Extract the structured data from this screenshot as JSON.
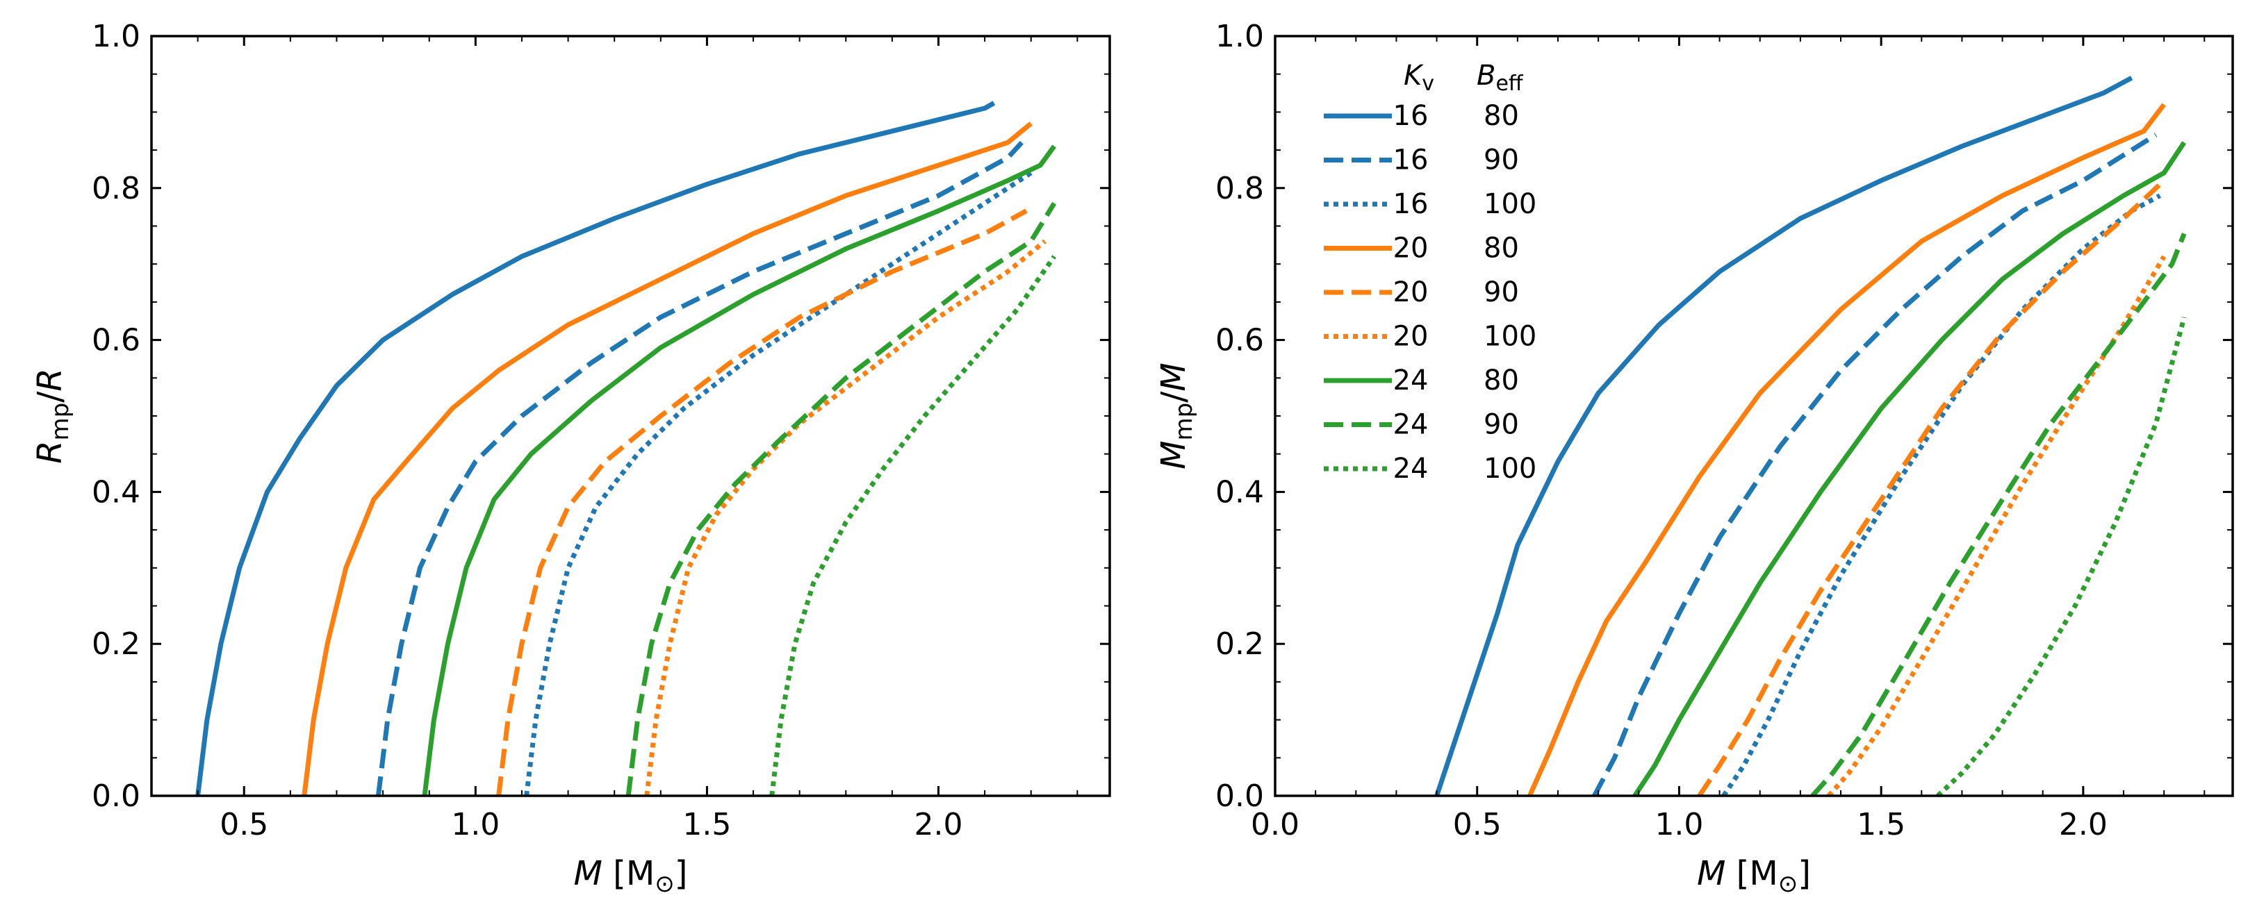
{
  "chart_data": [
    {
      "type": "line",
      "id": "left",
      "xlabel": {
        "main": "M",
        "unit": "[M",
        "unit_sub": "⊙",
        "unit_end": "]"
      },
      "ylabel": {
        "main": "R",
        "sub": "mp",
        "tail": "/R"
      },
      "xlim": [
        0.3,
        2.37
      ],
      "ylim": [
        0.0,
        1.0
      ],
      "xticks": [
        0.5,
        1.0,
        1.5,
        2.0
      ],
      "xtick_labels": [
        "0.5",
        "1.0",
        "1.5",
        "2.0"
      ],
      "yticks": [
        0.0,
        0.2,
        0.4,
        0.6,
        0.8,
        1.0
      ],
      "ytick_labels": [
        "0.0",
        "0.2",
        "0.4",
        "0.6",
        "0.8",
        "1.0"
      ],
      "series": [
        {
          "kv": "16",
          "beff": "80",
          "color": "#1f77b4",
          "dash": "solid",
          "points": [
            [
              0.4,
              0.0
            ],
            [
              0.42,
              0.1
            ],
            [
              0.45,
              0.2
            ],
            [
              0.49,
              0.3
            ],
            [
              0.55,
              0.4
            ],
            [
              0.62,
              0.47
            ],
            [
              0.7,
              0.54
            ],
            [
              0.8,
              0.6
            ],
            [
              0.95,
              0.66
            ],
            [
              1.1,
              0.71
            ],
            [
              1.3,
              0.76
            ],
            [
              1.5,
              0.805
            ],
            [
              1.7,
              0.845
            ],
            [
              1.9,
              0.875
            ],
            [
              2.1,
              0.905
            ],
            [
              2.12,
              0.912
            ]
          ]
        },
        {
          "kv": "16",
          "beff": "90",
          "color": "#1f77b4",
          "dash": "dashed",
          "points": [
            [
              0.79,
              0.0
            ],
            [
              0.81,
              0.1
            ],
            [
              0.84,
              0.2
            ],
            [
              0.88,
              0.3
            ],
            [
              0.94,
              0.38
            ],
            [
              1.0,
              0.44
            ],
            [
              1.1,
              0.5
            ],
            [
              1.25,
              0.57
            ],
            [
              1.4,
              0.63
            ],
            [
              1.6,
              0.69
            ],
            [
              1.8,
              0.74
            ],
            [
              2.0,
              0.79
            ],
            [
              2.15,
              0.84
            ],
            [
              2.18,
              0.86
            ]
          ]
        },
        {
          "kv": "16",
          "beff": "100",
          "color": "#1f77b4",
          "dash": "dotted",
          "points": [
            [
              1.11,
              0.0
            ],
            [
              1.13,
              0.1
            ],
            [
              1.16,
              0.2
            ],
            [
              1.2,
              0.3
            ],
            [
              1.26,
              0.38
            ],
            [
              1.35,
              0.45
            ],
            [
              1.45,
              0.51
            ],
            [
              1.6,
              0.58
            ],
            [
              1.8,
              0.66
            ],
            [
              2.0,
              0.74
            ],
            [
              2.15,
              0.8
            ],
            [
              2.2,
              0.82
            ]
          ]
        },
        {
          "kv": "20",
          "beff": "80",
          "color": "#ff7f0e",
          "dash": "solid",
          "points": [
            [
              0.63,
              0.0
            ],
            [
              0.65,
              0.1
            ],
            [
              0.68,
              0.2
            ],
            [
              0.72,
              0.3
            ],
            [
              0.78,
              0.39
            ],
            [
              0.85,
              0.44
            ],
            [
              0.95,
              0.51
            ],
            [
              1.05,
              0.56
            ],
            [
              1.2,
              0.62
            ],
            [
              1.4,
              0.68
            ],
            [
              1.6,
              0.74
            ],
            [
              1.8,
              0.79
            ],
            [
              2.0,
              0.83
            ],
            [
              2.15,
              0.86
            ],
            [
              2.2,
              0.885
            ]
          ]
        },
        {
          "kv": "20",
          "beff": "90",
          "color": "#ff7f0e",
          "dash": "dashed",
          "points": [
            [
              1.05,
              0.0
            ],
            [
              1.07,
              0.1
            ],
            [
              1.1,
              0.2
            ],
            [
              1.14,
              0.3
            ],
            [
              1.2,
              0.38
            ],
            [
              1.28,
              0.44
            ],
            [
              1.4,
              0.5
            ],
            [
              1.55,
              0.57
            ],
            [
              1.7,
              0.63
            ],
            [
              1.9,
              0.69
            ],
            [
              2.1,
              0.74
            ],
            [
              2.19,
              0.77
            ]
          ]
        },
        {
          "kv": "20",
          "beff": "100",
          "color": "#ff7f0e",
          "dash": "dotted",
          "points": [
            [
              1.37,
              0.0
            ],
            [
              1.39,
              0.1
            ],
            [
              1.42,
              0.2
            ],
            [
              1.46,
              0.3
            ],
            [
              1.52,
              0.37
            ],
            [
              1.6,
              0.43
            ],
            [
              1.7,
              0.49
            ],
            [
              1.85,
              0.56
            ],
            [
              2.0,
              0.63
            ],
            [
              2.15,
              0.69
            ],
            [
              2.23,
              0.73
            ]
          ]
        },
        {
          "kv": "24",
          "beff": "80",
          "color": "#2ca02c",
          "dash": "solid",
          "points": [
            [
              0.89,
              0.0
            ],
            [
              0.91,
              0.1
            ],
            [
              0.94,
              0.2
            ],
            [
              0.98,
              0.3
            ],
            [
              1.04,
              0.39
            ],
            [
              1.12,
              0.45
            ],
            [
              1.25,
              0.52
            ],
            [
              1.4,
              0.59
            ],
            [
              1.6,
              0.66
            ],
            [
              1.8,
              0.72
            ],
            [
              2.0,
              0.77
            ],
            [
              2.15,
              0.81
            ],
            [
              2.22,
              0.83
            ],
            [
              2.25,
              0.855
            ]
          ]
        },
        {
          "kv": "24",
          "beff": "90",
          "color": "#2ca02c",
          "dash": "dashed",
          "points": [
            [
              1.33,
              0.0
            ],
            [
              1.35,
              0.1
            ],
            [
              1.38,
              0.2
            ],
            [
              1.42,
              0.28
            ],
            [
              1.48,
              0.35
            ],
            [
              1.56,
              0.41
            ],
            [
              1.66,
              0.47
            ],
            [
              1.8,
              0.55
            ],
            [
              1.95,
              0.62
            ],
            [
              2.1,
              0.69
            ],
            [
              2.2,
              0.73
            ],
            [
              2.25,
              0.78
            ]
          ]
        },
        {
          "kv": "24",
          "beff": "100",
          "color": "#2ca02c",
          "dash": "dotted",
          "points": [
            [
              1.64,
              0.0
            ],
            [
              1.66,
              0.1
            ],
            [
              1.69,
              0.2
            ],
            [
              1.73,
              0.28
            ],
            [
              1.8,
              0.36
            ],
            [
              1.88,
              0.43
            ],
            [
              1.97,
              0.5
            ],
            [
              2.07,
              0.57
            ],
            [
              2.17,
              0.64
            ],
            [
              2.25,
              0.71
            ]
          ]
        }
      ]
    },
    {
      "type": "line",
      "id": "right",
      "xlabel": {
        "main": "M",
        "unit": "[M",
        "unit_sub": "⊙",
        "unit_end": "]"
      },
      "ylabel": {
        "main": "M",
        "sub": "mp",
        "tail": "/M"
      },
      "xlim": [
        0.0,
        2.37
      ],
      "ylim": [
        0.0,
        1.0
      ],
      "xticks": [
        0.0,
        0.5,
        1.0,
        1.5,
        2.0
      ],
      "xtick_labels": [
        "0.0",
        "0.5",
        "1.0",
        "1.5",
        "2.0"
      ],
      "yticks": [
        0.0,
        0.2,
        0.4,
        0.6,
        0.8,
        1.0
      ],
      "ytick_labels": [
        "0.0",
        "0.2",
        "0.4",
        "0.6",
        "0.8",
        "1.0"
      ],
      "legend": {
        "position": "upper-left",
        "header_kv": "K",
        "header_kv_sub": "v",
        "header_beff": "B",
        "header_beff_sub": "eff"
      },
      "series": [
        {
          "kv": "16",
          "beff": "80",
          "color": "#1f77b4",
          "dash": "solid",
          "points": [
            [
              0.4,
              0.0
            ],
            [
              0.45,
              0.08
            ],
            [
              0.5,
              0.16
            ],
            [
              0.55,
              0.24
            ],
            [
              0.6,
              0.33
            ],
            [
              0.7,
              0.44
            ],
            [
              0.8,
              0.53
            ],
            [
              0.95,
              0.62
            ],
            [
              1.1,
              0.69
            ],
            [
              1.3,
              0.76
            ],
            [
              1.5,
              0.81
            ],
            [
              1.7,
              0.855
            ],
            [
              1.9,
              0.895
            ],
            [
              2.05,
              0.925
            ],
            [
              2.12,
              0.945
            ]
          ]
        },
        {
          "kv": "16",
          "beff": "90",
          "color": "#1f77b4",
          "dash": "dashed",
          "points": [
            [
              0.79,
              0.0
            ],
            [
              0.84,
              0.05
            ],
            [
              0.9,
              0.13
            ],
            [
              1.0,
              0.24
            ],
            [
              1.1,
              0.34
            ],
            [
              1.25,
              0.46
            ],
            [
              1.4,
              0.56
            ],
            [
              1.55,
              0.64
            ],
            [
              1.7,
              0.71
            ],
            [
              1.85,
              0.77
            ],
            [
              2.0,
              0.81
            ],
            [
              2.12,
              0.85
            ],
            [
              2.18,
              0.87
            ]
          ]
        },
        {
          "kv": "16",
          "beff": "100",
          "color": "#1f77b4",
          "dash": "dotted",
          "points": [
            [
              1.11,
              0.0
            ],
            [
              1.16,
              0.04
            ],
            [
              1.22,
              0.1
            ],
            [
              1.3,
              0.19
            ],
            [
              1.4,
              0.29
            ],
            [
              1.55,
              0.42
            ],
            [
              1.7,
              0.54
            ],
            [
              1.85,
              0.64
            ],
            [
              2.0,
              0.72
            ],
            [
              2.12,
              0.77
            ],
            [
              2.19,
              0.79
            ]
          ]
        },
        {
          "kv": "20",
          "beff": "80",
          "color": "#ff7f0e",
          "dash": "solid",
          "points": [
            [
              0.63,
              0.0
            ],
            [
              0.68,
              0.06
            ],
            [
              0.75,
              0.15
            ],
            [
              0.82,
              0.23
            ],
            [
              0.92,
              0.31
            ],
            [
              1.05,
              0.42
            ],
            [
              1.2,
              0.53
            ],
            [
              1.4,
              0.64
            ],
            [
              1.6,
              0.73
            ],
            [
              1.8,
              0.79
            ],
            [
              2.0,
              0.84
            ],
            [
              2.15,
              0.875
            ],
            [
              2.2,
              0.91
            ]
          ]
        },
        {
          "kv": "20",
          "beff": "90",
          "color": "#ff7f0e",
          "dash": "dashed",
          "points": [
            [
              1.05,
              0.0
            ],
            [
              1.1,
              0.04
            ],
            [
              1.17,
              0.1
            ],
            [
              1.25,
              0.18
            ],
            [
              1.35,
              0.27
            ],
            [
              1.5,
              0.39
            ],
            [
              1.65,
              0.51
            ],
            [
              1.8,
              0.61
            ],
            [
              1.95,
              0.69
            ],
            [
              2.1,
              0.76
            ],
            [
              2.2,
              0.81
            ]
          ]
        },
        {
          "kv": "20",
          "beff": "100",
          "color": "#ff7f0e",
          "dash": "dotted",
          "points": [
            [
              1.37,
              0.0
            ],
            [
              1.42,
              0.03
            ],
            [
              1.5,
              0.09
            ],
            [
              1.6,
              0.18
            ],
            [
              1.72,
              0.29
            ],
            [
              1.85,
              0.41
            ],
            [
              1.98,
              0.52
            ],
            [
              2.1,
              0.62
            ],
            [
              2.2,
              0.71
            ]
          ]
        },
        {
          "kv": "24",
          "beff": "80",
          "color": "#2ca02c",
          "dash": "solid",
          "points": [
            [
              0.89,
              0.0
            ],
            [
              0.94,
              0.04
            ],
            [
              1.0,
              0.1
            ],
            [
              1.1,
              0.19
            ],
            [
              1.2,
              0.28
            ],
            [
              1.35,
              0.4
            ],
            [
              1.5,
              0.51
            ],
            [
              1.65,
              0.6
            ],
            [
              1.8,
              0.68
            ],
            [
              1.95,
              0.74
            ],
            [
              2.1,
              0.79
            ],
            [
              2.2,
              0.82
            ],
            [
              2.25,
              0.86
            ]
          ]
        },
        {
          "kv": "24",
          "beff": "90",
          "color": "#2ca02c",
          "dash": "dashed",
          "points": [
            [
              1.33,
              0.0
            ],
            [
              1.38,
              0.03
            ],
            [
              1.45,
              0.08
            ],
            [
              1.55,
              0.17
            ],
            [
              1.67,
              0.28
            ],
            [
              1.8,
              0.39
            ],
            [
              1.92,
              0.49
            ],
            [
              2.05,
              0.58
            ],
            [
              2.15,
              0.65
            ],
            [
              2.22,
              0.7
            ],
            [
              2.25,
              0.74
            ]
          ]
        },
        {
          "kv": "24",
          "beff": "100",
          "color": "#2ca02c",
          "dash": "dotted",
          "points": [
            [
              1.64,
              0.0
            ],
            [
              1.7,
              0.03
            ],
            [
              1.78,
              0.08
            ],
            [
              1.88,
              0.16
            ],
            [
              1.98,
              0.25
            ],
            [
              2.08,
              0.36
            ],
            [
              2.18,
              0.49
            ],
            [
              2.25,
              0.63
            ]
          ]
        }
      ]
    }
  ]
}
